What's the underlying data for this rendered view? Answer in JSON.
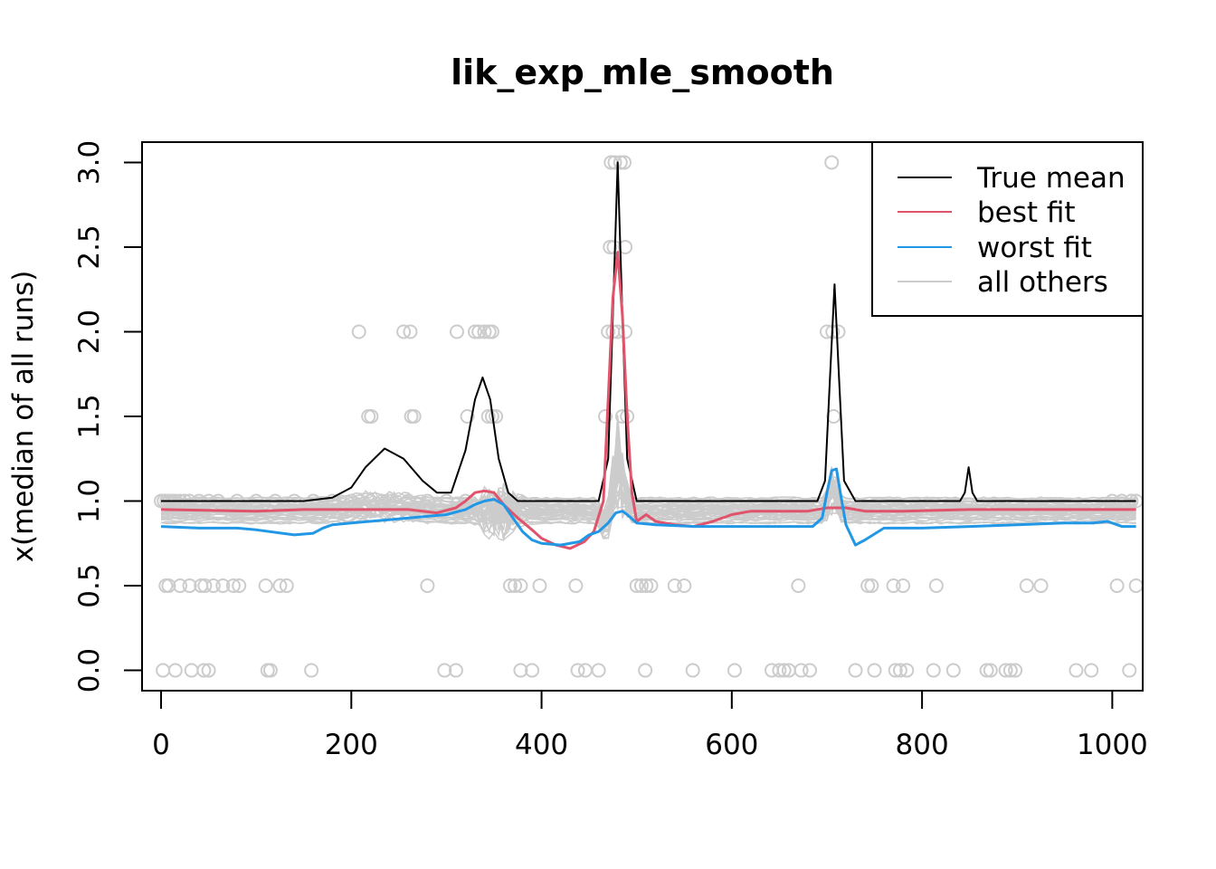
{
  "chart_data": {
    "type": "line",
    "title": "lik_exp_mle_smooth",
    "xlabel": "",
    "ylabel": "x(median of all runs)",
    "xlim": [
      -20,
      1032
    ],
    "ylim": [
      -0.12,
      3.12
    ],
    "x_ticks": [
      0,
      200,
      400,
      600,
      800,
      1000
    ],
    "y_ticks": [
      0.0,
      0.5,
      1.0,
      1.5,
      2.0,
      2.5,
      3.0
    ],
    "y_tick_labels": [
      "0.0",
      "0.5",
      "1.0",
      "1.5",
      "2.0",
      "2.5",
      "3.0"
    ],
    "grid": false,
    "legend_position": "top-right",
    "legend": [
      {
        "label": "True mean",
        "color": "#000000"
      },
      {
        "label": "best fit",
        "color": "#DF536B"
      },
      {
        "label": "worst fit",
        "color": "#2297E6"
      },
      {
        "label": "all others",
        "color": "#CCCCCC"
      }
    ],
    "series": [
      {
        "name": "True mean",
        "color": "#000000",
        "x": [
          0,
          150,
          180,
          200,
          215,
          235,
          255,
          275,
          290,
          305,
          320,
          330,
          338,
          346,
          355,
          365,
          375,
          390,
          460,
          470,
          475,
          480,
          485,
          490,
          500,
          690,
          698,
          703,
          708,
          713,
          718,
          730,
          840,
          845,
          849,
          853,
          858,
          1025
        ],
        "y": [
          1.0,
          1.0,
          1.02,
          1.08,
          1.2,
          1.31,
          1.25,
          1.12,
          1.05,
          1.05,
          1.3,
          1.6,
          1.73,
          1.6,
          1.25,
          1.05,
          1.0,
          1.0,
          1.0,
          1.25,
          2.1,
          3.0,
          2.1,
          1.25,
          1.0,
          1.0,
          1.12,
          1.7,
          2.28,
          1.7,
          1.12,
          1.0,
          1.0,
          1.05,
          1.2,
          1.05,
          1.0,
          1.0
        ]
      },
      {
        "name": "best fit",
        "color": "#DF536B",
        "x": [
          0,
          100,
          150,
          200,
          260,
          290,
          310,
          320,
          330,
          340,
          350,
          360,
          375,
          390,
          400,
          415,
          430,
          445,
          455,
          465,
          470,
          475,
          480,
          485,
          490,
          495,
          500,
          510,
          520,
          540,
          560,
          580,
          600,
          620,
          680,
          700,
          710,
          720,
          740,
          780,
          850,
          950,
          1025
        ],
        "y": [
          0.95,
          0.94,
          0.95,
          0.95,
          0.95,
          0.93,
          0.96,
          1.0,
          1.05,
          1.06,
          1.05,
          0.98,
          0.9,
          0.83,
          0.78,
          0.74,
          0.72,
          0.76,
          0.82,
          1.0,
          1.6,
          2.2,
          2.47,
          2.1,
          1.5,
          1.05,
          0.88,
          0.92,
          0.88,
          0.86,
          0.85,
          0.88,
          0.92,
          0.94,
          0.94,
          0.96,
          0.96,
          0.96,
          0.94,
          0.94,
          0.95,
          0.95,
          0.95
        ]
      },
      {
        "name": "worst fit",
        "color": "#2297E6",
        "x": [
          0,
          40,
          80,
          100,
          140,
          160,
          170,
          180,
          200,
          240,
          260,
          300,
          320,
          330,
          340,
          350,
          360,
          370,
          380,
          390,
          400,
          420,
          440,
          450,
          460,
          470,
          478,
          485,
          490,
          500,
          520,
          560,
          600,
          660,
          685,
          695,
          700,
          705,
          710,
          715,
          720,
          730,
          740,
          760,
          800,
          850,
          900,
          950,
          980,
          995,
          1010,
          1025
        ],
        "y": [
          0.85,
          0.84,
          0.84,
          0.83,
          0.8,
          0.81,
          0.84,
          0.86,
          0.87,
          0.89,
          0.9,
          0.92,
          0.95,
          0.98,
          1.0,
          1.01,
          0.98,
          0.9,
          0.82,
          0.77,
          0.75,
          0.74,
          0.76,
          0.8,
          0.82,
          0.87,
          0.93,
          0.94,
          0.92,
          0.87,
          0.86,
          0.85,
          0.85,
          0.85,
          0.85,
          0.9,
          1.05,
          1.18,
          1.19,
          1.02,
          0.86,
          0.74,
          0.77,
          0.84,
          0.84,
          0.85,
          0.86,
          0.87,
          0.87,
          0.88,
          0.85,
          0.85
        ]
      }
    ],
    "other_runs_band": {
      "color": "#CCCCCC",
      "y_low": 0.87,
      "y_high": 1.03
    },
    "observations": {
      "color": "#CCCCCC",
      "points": [
        [
          0,
          1.0
        ],
        [
          3,
          1.0
        ],
        [
          6,
          1.0
        ],
        [
          9,
          1.0
        ],
        [
          12,
          1.0
        ],
        [
          15,
          1.0
        ],
        [
          20,
          1.0
        ],
        [
          25,
          1.0
        ],
        [
          30,
          1.0
        ],
        [
          40,
          1.0
        ],
        [
          50,
          1.0
        ],
        [
          60,
          1.0
        ],
        [
          80,
          1.0
        ],
        [
          100,
          1.0
        ],
        [
          120,
          1.0
        ],
        [
          140,
          1.0
        ],
        [
          160,
          1.0
        ],
        [
          180,
          1.0
        ],
        [
          200,
          1.0
        ],
        [
          220,
          1.0
        ],
        [
          240,
          1.0
        ],
        [
          260,
          1.0
        ],
        [
          280,
          1.0
        ],
        [
          300,
          1.0
        ],
        [
          320,
          1.0
        ],
        [
          1020,
          1.0
        ],
        [
          1025,
          1.0
        ],
        [
          1010,
          1.0
        ],
        [
          1000,
          1.0
        ],
        [
          208,
          2.0
        ],
        [
          255,
          2.0
        ],
        [
          262,
          2.0
        ],
        [
          311,
          2.0
        ],
        [
          330,
          2.0
        ],
        [
          334,
          2.0
        ],
        [
          340,
          2.0
        ],
        [
          345,
          2.0
        ],
        [
          348,
          2.0
        ],
        [
          470,
          2.0
        ],
        [
          475,
          2.0
        ],
        [
          480,
          2.0
        ],
        [
          488,
          2.0
        ],
        [
          700,
          2.0
        ],
        [
          706,
          2.0
        ],
        [
          712,
          2.0
        ],
        [
          218,
          1.5
        ],
        [
          221,
          1.5
        ],
        [
          263,
          1.5
        ],
        [
          266,
          1.5
        ],
        [
          322,
          1.5
        ],
        [
          344,
          1.5
        ],
        [
          348,
          1.5
        ],
        [
          352,
          1.5
        ],
        [
          467,
          1.5
        ],
        [
          485,
          1.5
        ],
        [
          490,
          1.5
        ],
        [
          707,
          1.5
        ],
        [
          473,
          3.0
        ],
        [
          477,
          3.0
        ],
        [
          483,
          3.0
        ],
        [
          487,
          3.0
        ],
        [
          705,
          3.0
        ],
        [
          472,
          2.5
        ],
        [
          476,
          2.5
        ],
        [
          488,
          2.5
        ],
        [
          5,
          0.5
        ],
        [
          8,
          0.5
        ],
        [
          20,
          0.5
        ],
        [
          30,
          0.5
        ],
        [
          42,
          0.5
        ],
        [
          46,
          0.5
        ],
        [
          55,
          0.5
        ],
        [
          65,
          0.5
        ],
        [
          76,
          0.5
        ],
        [
          82,
          0.5
        ],
        [
          110,
          0.5
        ],
        [
          125,
          0.5
        ],
        [
          132,
          0.5
        ],
        [
          280,
          0.5
        ],
        [
          367,
          0.5
        ],
        [
          372,
          0.5
        ],
        [
          378,
          0.5
        ],
        [
          398,
          0.5
        ],
        [
          436,
          0.5
        ],
        [
          500,
          0.5
        ],
        [
          505,
          0.5
        ],
        [
          510,
          0.5
        ],
        [
          515,
          0.5
        ],
        [
          540,
          0.5
        ],
        [
          550,
          0.5
        ],
        [
          670,
          0.5
        ],
        [
          743,
          0.5
        ],
        [
          747,
          0.5
        ],
        [
          770,
          0.5
        ],
        [
          780,
          0.5
        ],
        [
          815,
          0.5
        ],
        [
          910,
          0.5
        ],
        [
          925,
          0.5
        ],
        [
          1005,
          0.5
        ],
        [
          1025,
          0.5
        ],
        [
          2,
          0.0
        ],
        [
          15,
          0.0
        ],
        [
          32,
          0.0
        ],
        [
          45,
          0.0
        ],
        [
          50,
          0.0
        ],
        [
          112,
          0.0
        ],
        [
          115,
          0.0
        ],
        [
          158,
          0.0
        ],
        [
          298,
          0.0
        ],
        [
          310,
          0.0
        ],
        [
          378,
          0.0
        ],
        [
          390,
          0.0
        ],
        [
          438,
          0.0
        ],
        [
          446,
          0.0
        ],
        [
          460,
          0.0
        ],
        [
          509,
          0.0
        ],
        [
          559,
          0.0
        ],
        [
          603,
          0.0
        ],
        [
          642,
          0.0
        ],
        [
          650,
          0.0
        ],
        [
          655,
          0.0
        ],
        [
          660,
          0.0
        ],
        [
          673,
          0.0
        ],
        [
          682,
          0.0
        ],
        [
          730,
          0.0
        ],
        [
          750,
          0.0
        ],
        [
          772,
          0.0
        ],
        [
          777,
          0.0
        ],
        [
          784,
          0.0
        ],
        [
          812,
          0.0
        ],
        [
          833,
          0.0
        ],
        [
          868,
          0.0
        ],
        [
          872,
          0.0
        ],
        [
          888,
          0.0
        ],
        [
          893,
          0.0
        ],
        [
          898,
          0.0
        ],
        [
          962,
          0.0
        ],
        [
          978,
          0.0
        ],
        [
          1018,
          0.0
        ]
      ]
    }
  }
}
